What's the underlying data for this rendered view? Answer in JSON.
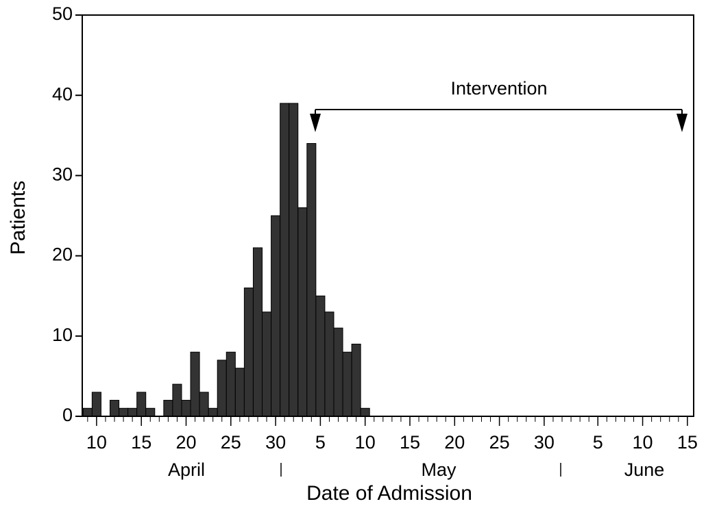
{
  "chart_data": {
    "type": "bar",
    "x_axis_label": "Date of Admission",
    "y_axis_label": "Patients",
    "annotation": "Intervention",
    "months": [
      "April",
      "May",
      "June"
    ],
    "x": [
      9,
      10,
      11,
      12,
      13,
      14,
      15,
      16,
      17,
      18,
      19,
      20,
      21,
      22,
      23,
      24,
      25,
      26,
      27,
      28,
      29,
      30,
      31,
      32,
      33,
      34,
      35,
      36,
      37,
      38,
      39,
      40
    ],
    "values": [
      1,
      3,
      0,
      2,
      1,
      1,
      3,
      1,
      0,
      2,
      4,
      2,
      8,
      3,
      1,
      7,
      8,
      6,
      16,
      21,
      13,
      25,
      39,
      39,
      26,
      34,
      15,
      13,
      11,
      8,
      9,
      1
    ],
    "color": "#333333",
    "xlim": [
      8.4,
      76.7
    ],
    "xticks": [
      10,
      15,
      20,
      25,
      30,
      {
        "value": 35,
        "label": "5"
      },
      {
        "value": 40,
        "label": "10"
      },
      {
        "value": 45,
        "label": "15"
      },
      {
        "value": 50,
        "label": "20"
      },
      {
        "value": 55,
        "label": "25"
      },
      {
        "value": 60,
        "label": "30"
      },
      {
        "value": 66,
        "label": "5"
      },
      {
        "value": 71,
        "label": "10"
      },
      {
        "value": 76,
        "label": "15"
      }
    ],
    "ylim": [
      0,
      50
    ],
    "yticks": [
      0,
      10,
      20,
      30,
      40,
      50
    ]
  }
}
